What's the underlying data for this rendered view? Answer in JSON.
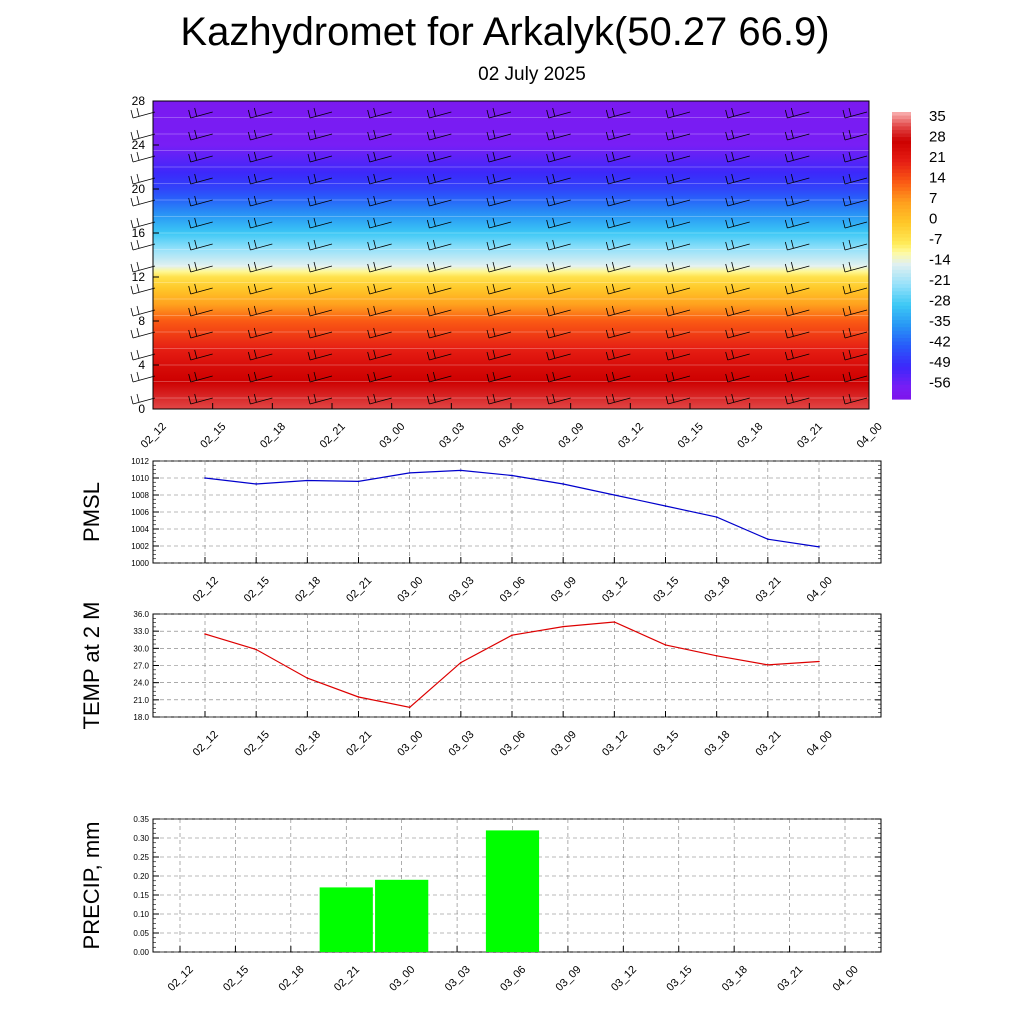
{
  "title": "Kazhydromet for Arkalyk(50.27 66.9)",
  "subtitle": "02 July 2025",
  "x_ticks": [
    "02_12",
    "02_15",
    "02_18",
    "02_21",
    "03_00",
    "03_03",
    "03_06",
    "03_09",
    "03_12",
    "03_15",
    "03_18",
    "03_21",
    "04_00"
  ],
  "chart_data": [
    {
      "type": "heatmap",
      "name": "temperature-height-section",
      "xlabel": "",
      "ylabel": "",
      "y_ticks": [
        0,
        4,
        8,
        12,
        16,
        20,
        24,
        28
      ],
      "ylim": [
        0,
        28
      ],
      "colorbar_labels": [
        "35",
        "28",
        "21",
        "14",
        "7",
        "0",
        "-7",
        "-14",
        "-21",
        "-28",
        "-35",
        "-42",
        "-49",
        "-56"
      ],
      "colorbar_range": [
        -60,
        38
      ],
      "approx_temperature_profile": [
        {
          "height": 0,
          "value": 33
        },
        {
          "height": 4,
          "value": 25
        },
        {
          "height": 8,
          "value": 14
        },
        {
          "height": 12,
          "value": -5
        },
        {
          "height": 13,
          "value": -14
        },
        {
          "height": 16,
          "value": -28
        },
        {
          "height": 20,
          "value": -45
        },
        {
          "height": 24,
          "value": -56
        },
        {
          "height": 28,
          "value": -58
        }
      ],
      "wind_barbs": true
    },
    {
      "type": "line",
      "ylabel": "PMSL",
      "categories": [
        "02_12",
        "02_15",
        "02_18",
        "02_21",
        "03_00",
        "03_03",
        "03_06",
        "03_09",
        "03_12",
        "03_15",
        "03_18",
        "03_21",
        "04_00"
      ],
      "values": [
        1010.0,
        1009.3,
        1009.7,
        1009.6,
        1010.6,
        1010.9,
        1010.3,
        1009.3,
        1008.0,
        1006.7,
        1005.4,
        1002.8,
        1001.9
      ],
      "ylim": [
        1000,
        1012
      ],
      "y_ticks": [
        "1000",
        "1002",
        "1004",
        "1006",
        "1008",
        "1010",
        "1012"
      ],
      "color": "#0000cc",
      "grid": true
    },
    {
      "type": "line",
      "ylabel": "TEMP at 2 M",
      "categories": [
        "02_12",
        "02_15",
        "02_18",
        "02_21",
        "03_00",
        "03_03",
        "03_06",
        "03_09",
        "03_12",
        "03_15",
        "03_18",
        "03_21",
        "04_00"
      ],
      "values": [
        32.5,
        29.8,
        24.8,
        21.5,
        19.7,
        27.5,
        32.3,
        33.8,
        34.6,
        30.6,
        28.7,
        27.1,
        27.7
      ],
      "ylim": [
        18,
        36
      ],
      "y_ticks": [
        "18.0",
        "21.0",
        "24.0",
        "27.0",
        "30.0",
        "33.0",
        "36.0"
      ],
      "color": "#dd0000",
      "grid": true
    },
    {
      "type": "bar",
      "ylabel": "PRECIP, mm",
      "categories": [
        "02_12",
        "02_15",
        "02_18",
        "02_21",
        "03_00",
        "03_03",
        "03_06",
        "03_09",
        "03_12",
        "03_15",
        "03_18",
        "03_21",
        "04_00"
      ],
      "values": [
        0,
        0,
        0,
        0.17,
        0.19,
        0,
        0.32,
        0,
        0,
        0,
        0,
        0,
        0
      ],
      "ylim": [
        0,
        0.35
      ],
      "y_ticks": [
        "0.00",
        "0.05",
        "0.10",
        "0.15",
        "0.20",
        "0.25",
        "0.30",
        "0.35"
      ],
      "color": "#00ff00",
      "grid": true
    }
  ]
}
